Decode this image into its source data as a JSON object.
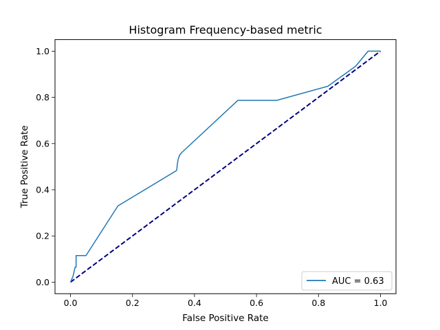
{
  "chart_data": {
    "type": "line",
    "title": "Histogram Frequency-based metric",
    "xlabel": "False Positive Rate",
    "ylabel": "True Positive Rate",
    "xlim": [
      -0.05,
      1.05
    ],
    "ylim": [
      -0.05,
      1.05
    ],
    "xticks": [
      0.0,
      0.2,
      0.4,
      0.6,
      0.8,
      1.0
    ],
    "xtick_labels": [
      "0.0",
      "0.2",
      "0.4",
      "0.6",
      "0.8",
      "1.0"
    ],
    "yticks": [
      0.0,
      0.2,
      0.4,
      0.6,
      0.8,
      1.0
    ],
    "ytick_labels": [
      "0.0",
      "0.2",
      "0.4",
      "0.6",
      "0.8",
      "1.0"
    ],
    "grid": false,
    "legend_location": "lower right",
    "series": [
      {
        "name": "AUC = 0.63",
        "color": "#1f77b4",
        "style": "solid",
        "x": [
          0.0,
          0.008,
          0.015,
          0.018,
          0.018,
          0.05,
          0.153,
          0.342,
          0.343,
          0.345,
          0.348,
          0.352,
          0.358,
          0.54,
          0.665,
          0.83,
          0.92,
          0.96,
          0.993,
          1.0
        ],
        "y": [
          0.0,
          0.025,
          0.065,
          0.065,
          0.115,
          0.115,
          0.33,
          0.483,
          0.49,
          0.515,
          0.535,
          0.55,
          0.56,
          0.787,
          0.787,
          0.848,
          0.935,
          1.0,
          1.0,
          1.0
        ]
      },
      {
        "name": "",
        "color": "#000080",
        "style": "dashed",
        "x": [
          0.0,
          1.0
        ],
        "y": [
          0.0,
          1.0
        ]
      }
    ]
  }
}
